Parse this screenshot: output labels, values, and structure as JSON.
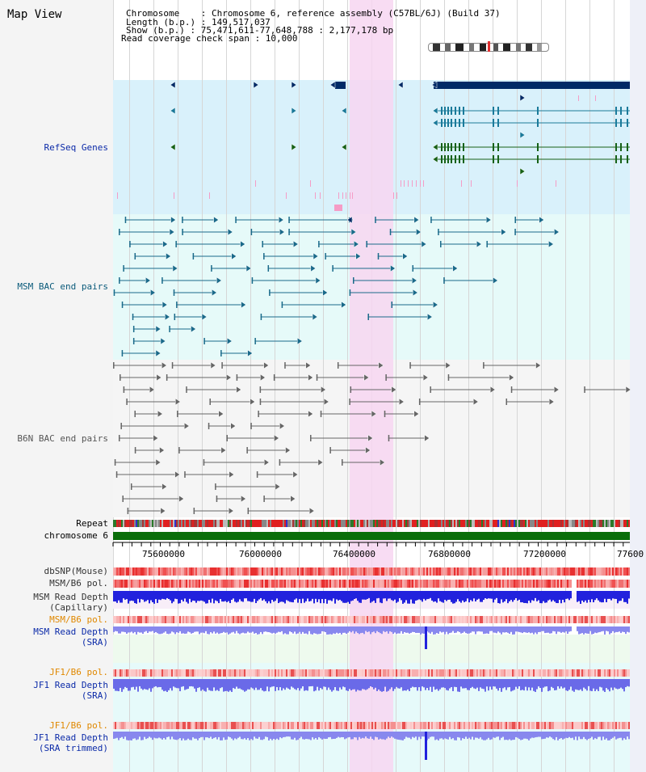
{
  "title": "Map View",
  "info": {
    "chromosome": "Chromosome    : Chromosome 6, reference assembly (C57BL/6J) (Build 37)",
    "length": "Length (b.p.) : 149,517,037",
    "show": "Show (b.p.) : 75,471,611-77,648,788 : 2,177,178 bp",
    "span": "Read coverage check span : 10,000"
  },
  "tracks": {
    "refseq": "RefSeq Genes",
    "msm_bac": "MSM BAC end pairs",
    "b6n_bac": "B6N BAC end pairs",
    "repeat": "Repeat",
    "chromosome": "chromosome 6",
    "dbsnp": "dbSNP(Mouse)",
    "msm_b6_pol_1": "MSM/B6 pol.",
    "msm_read_depth_cap_1": "MSM Read Depth",
    "msm_read_depth_cap_2": "(Capillary)",
    "msm_b6_pol_2": "MSM/B6 pol.",
    "msm_read_depth_sra_1": "MSM Read Depth",
    "msm_read_depth_sra_2": "(SRA)",
    "jf1_b6_pol_1": "JF1/B6 pol.",
    "jf1_read_depth_sra_1": "JF1 Read Depth",
    "jf1_read_depth_sra_2": "(SRA)",
    "jf1_b6_pol_2": "JF1/B6 pol.",
    "jf1_read_depth_trim_1": "JF1 Read Depth",
    "jf1_read_depth_trim_2": "(SRA trimmed)"
  },
  "axis": {
    "ticks": [
      "75600000",
      "76000000",
      "76400000",
      "76800000",
      "77200000",
      "77600"
    ]
  },
  "colors": {
    "refseq_bg": "#d9f1fb",
    "bac_bg": "#e6faf9",
    "highlight": "#f7d6f1",
    "refseq_dark": "#002a66",
    "refseq_teal": "#1a7a9a",
    "refseq_green": "#166116",
    "msm_pair": "#1a6a8a",
    "b6n_pair": "#666666",
    "chromosome": "#0a6e0a",
    "depth_blue": "#2222dd",
    "depth_light": "#8888ee"
  }
}
